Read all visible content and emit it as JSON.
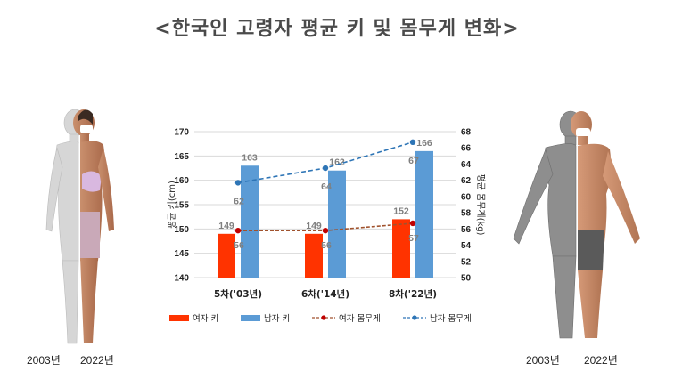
{
  "title": "<한국인 고령자 평균 키 및 몸무게 변화>",
  "figures": {
    "female_labels": [
      "2003년",
      "2022년"
    ],
    "male_labels": [
      "2003년",
      "2022년"
    ]
  },
  "colors": {
    "female_bar": "#ff3300",
    "male_bar": "#5b9bd5",
    "female_line": "#a0522d",
    "male_line": "#2e75b6",
    "female_dot": "#c00000",
    "male_dot": "#2e75b6",
    "grid": "#d9d9d9"
  },
  "chart_data": {
    "type": "bar",
    "categories": [
      "5차('03년)",
      "6차('14년)",
      "8차('22년)"
    ],
    "ylabel": "평균 키(cm)",
    "ylabel_right": "평균 몸무게(kg)",
    "ylim": [
      140,
      170
    ],
    "y_ticks": [
      140,
      145,
      150,
      155,
      160,
      165,
      170
    ],
    "ylim_right": [
      50,
      68
    ],
    "y_ticks_right": [
      50,
      52,
      54,
      56,
      58,
      60,
      62,
      64,
      66,
      68
    ],
    "grid": true,
    "legend_position": "bottom",
    "series": [
      {
        "name": "여자 키",
        "type": "bar",
        "axis": "left",
        "values": [
          149,
          149,
          152
        ],
        "value_labels": [
          "149",
          "149",
          "152"
        ]
      },
      {
        "name": "남자 키",
        "type": "bar",
        "axis": "left",
        "values": [
          163,
          162,
          166
        ],
        "value_labels": [
          "163",
          "162",
          "166"
        ]
      },
      {
        "name": "여자 몸무게",
        "type": "line",
        "axis": "right",
        "values": [
          55.8,
          55.8,
          56.7
        ],
        "value_labels": [
          "56",
          "56",
          "57"
        ]
      },
      {
        "name": "남자 몸무게",
        "type": "line",
        "axis": "right",
        "values": [
          61.7,
          63.5,
          66.7
        ],
        "value_labels": [
          "62",
          "64",
          "67"
        ]
      }
    ]
  }
}
